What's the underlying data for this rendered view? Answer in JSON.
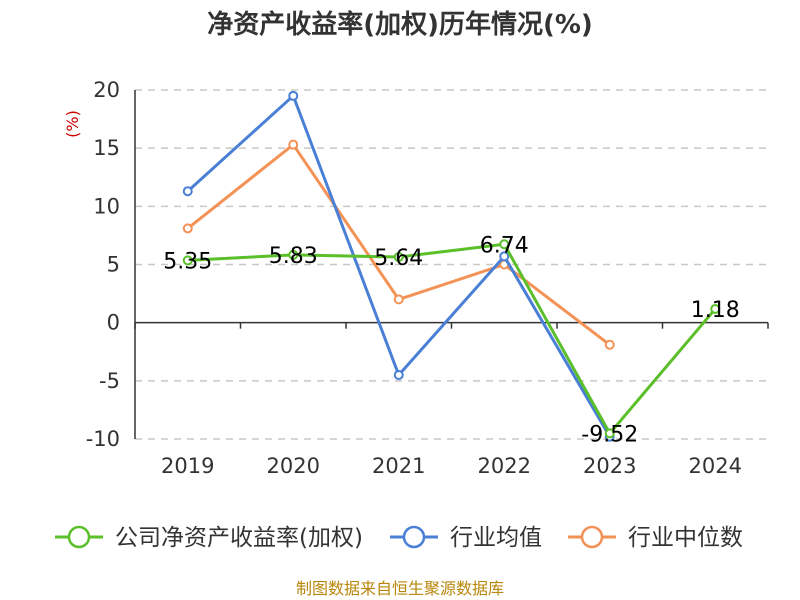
{
  "chart_data": {
    "type": "line",
    "title": "净资产收益率(加权)历年情况(%)",
    "ylabel": "(%)",
    "categories": [
      "2019",
      "2020",
      "2021",
      "2022",
      "2023",
      "2024"
    ],
    "ylim": [
      -10,
      20
    ],
    "yticks": [
      "20",
      "15",
      "10",
      "5",
      "0",
      "-5",
      "-10"
    ],
    "grid": true,
    "legend": "bottom",
    "series": [
      {
        "name": "公司净资产收益率(加权)",
        "color": "#5bbf2a",
        "values": [
          5.35,
          5.83,
          5.64,
          6.74,
          -9.52,
          1.18
        ],
        "labels": [
          "5.35",
          "5.83",
          "5.64",
          "6.74",
          "-9.52",
          "1.18"
        ]
      },
      {
        "name": "行业均值",
        "color": "#4a7fd6",
        "values": [
          11.3,
          19.5,
          -4.5,
          5.7,
          -9.8,
          null
        ]
      },
      {
        "name": "行业中位数",
        "color": "#f49256",
        "values": [
          8.1,
          15.3,
          2.0,
          5.0,
          -1.9,
          null
        ]
      }
    ]
  },
  "source": "制图数据来自恒生聚源数据库"
}
